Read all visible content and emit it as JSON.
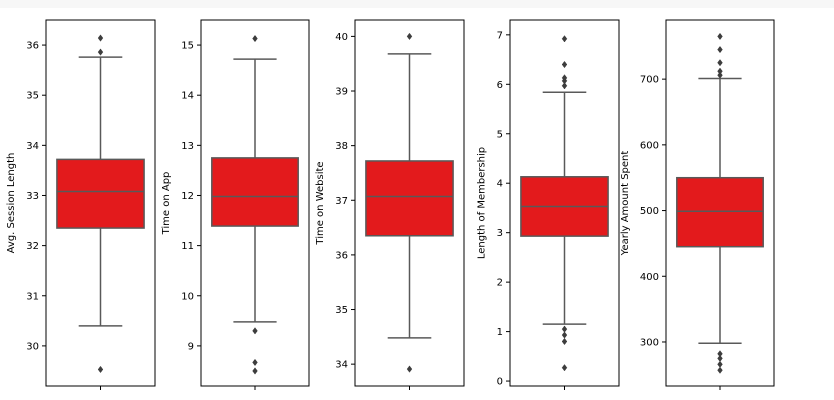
{
  "chart_data": [
    {
      "type": "box",
      "ylabel": "Avg. Session Length",
      "ylim": [
        29.2,
        36.5
      ],
      "yticks": [
        "30",
        "31",
        "32",
        "33",
        "34",
        "35",
        "36"
      ],
      "color": "#e31a1c",
      "whisker_low": 30.4,
      "q1": 32.35,
      "median": 33.08,
      "q3": 33.72,
      "whisker_high": 35.76,
      "outliers": [
        29.53,
        35.86,
        36.14
      ]
    },
    {
      "type": "box",
      "ylabel": "Time on App",
      "ylim": [
        8.2,
        15.5
      ],
      "yticks": [
        "9",
        "10",
        "11",
        "12",
        "13",
        "14",
        "15"
      ],
      "color": "#e31a1c",
      "whisker_low": 9.48,
      "q1": 11.39,
      "median": 11.98,
      "q3": 12.75,
      "whisker_high": 14.72,
      "outliers": [
        8.5,
        8.67,
        9.3,
        15.13
      ]
    },
    {
      "type": "box",
      "ylabel": "Time on Website",
      "ylim": [
        33.6,
        40.3
      ],
      "yticks": [
        "34",
        "35",
        "36",
        "37",
        "38",
        "39",
        "40"
      ],
      "color": "#e31a1c",
      "whisker_low": 34.48,
      "q1": 36.35,
      "median": 37.07,
      "q3": 37.72,
      "whisker_high": 39.68,
      "outliers": [
        33.91,
        40.0
      ]
    },
    {
      "type": "box",
      "ylabel": "Length of Membership",
      "ylim": [
        -0.1,
        7.3
      ],
      "yticks": [
        "0",
        "1",
        "2",
        "3",
        "4",
        "5",
        "6",
        "7"
      ],
      "color": "#e31a1c",
      "whisker_low": 1.15,
      "q1": 2.93,
      "median": 3.53,
      "q3": 4.13,
      "whisker_high": 5.84,
      "outliers": [
        0.27,
        0.8,
        0.93,
        1.05,
        5.97,
        6.07,
        6.13,
        6.4,
        6.92
      ]
    },
    {
      "type": "box",
      "ylabel": "Yearly Amount Spent",
      "ylim": [
        233,
        790
      ],
      "yticks": [
        "300",
        "400",
        "500",
        "600",
        "700"
      ],
      "color": "#e31a1c",
      "whisker_low": 298,
      "q1": 445,
      "median": 499,
      "q3": 550,
      "whisker_high": 701,
      "outliers": [
        257,
        266,
        275,
        282,
        706,
        712,
        725,
        745,
        765
      ]
    }
  ]
}
